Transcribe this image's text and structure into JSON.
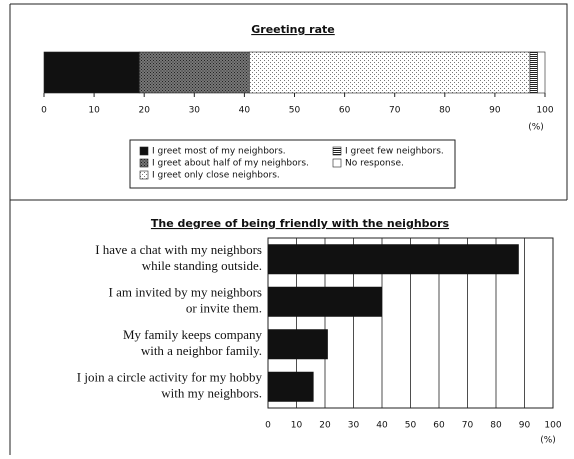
{
  "chart_data": [
    {
      "type": "stacked-bar",
      "title": "Greeting rate",
      "series": [
        {
          "name": "I greet most of my neighbors.",
          "color": "#111111",
          "pattern": "solid",
          "values": [
            19
          ]
        },
        {
          "name": "I greet about half of my neighbors.",
          "color": "#555555",
          "pattern": "dense-dots",
          "values": [
            22
          ]
        },
        {
          "name": "I greet only close neighbors.",
          "color": "#bbbbbb",
          "pattern": "sparse-dots",
          "values": [
            56
          ]
        },
        {
          "name": "I greet few neighbors.",
          "color": "#333333",
          "pattern": "hlines",
          "values": [
            1.5
          ]
        },
        {
          "name": "No response.",
          "color": "#ffffff",
          "pattern": "none",
          "values": [
            1.5
          ]
        }
      ],
      "xlim": [
        0,
        100
      ],
      "xticks": [
        0,
        10,
        20,
        30,
        40,
        50,
        60,
        70,
        80,
        90,
        100
      ],
      "x_unit": "(%)"
    },
    {
      "type": "hbar",
      "title": "The degree of being friendly with the neighbors",
      "categories": [
        [
          "I have a chat with my neighbors",
          "while standing outside."
        ],
        [
          "I am invited by my neighbors",
          "or invite them."
        ],
        [
          "My family keeps company",
          "with a neighbor family."
        ],
        [
          "I join a circle activity for my hobby",
          "with my neighbors."
        ]
      ],
      "values": [
        88,
        40,
        21,
        16
      ],
      "color": "#111111",
      "xlim": [
        0,
        100
      ],
      "xticks": [
        0,
        10,
        20,
        30,
        40,
        50,
        60,
        70,
        80,
        90,
        100
      ],
      "x_unit": "(%)",
      "grid": true
    }
  ]
}
